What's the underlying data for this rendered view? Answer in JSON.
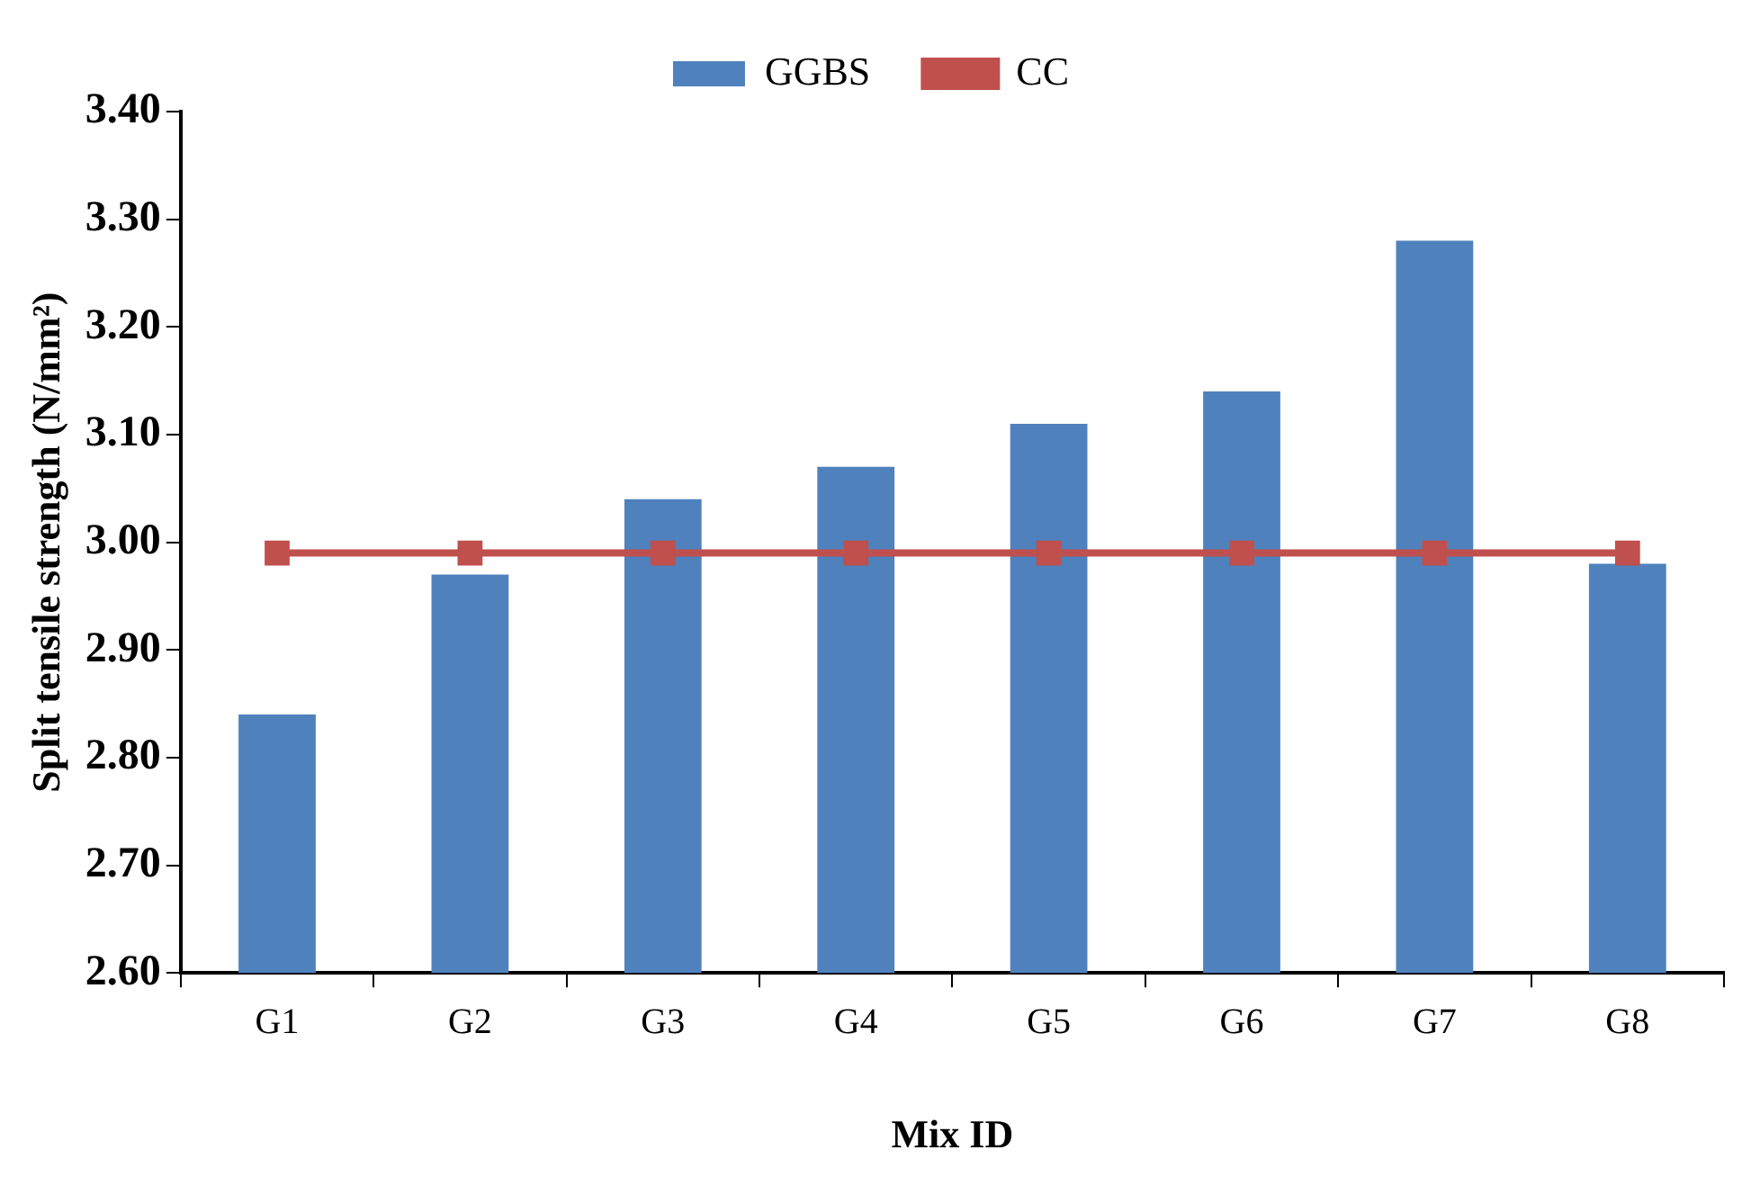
{
  "chart_data": {
    "type": "bar",
    "xlabel": "Mix ID",
    "ylabel": "Split tensile strength (N/mm²)",
    "categories": [
      "G1",
      "G2",
      "G3",
      "G4",
      "G5",
      "G6",
      "G7",
      "G8"
    ],
    "series": [
      {
        "name": "GGBS",
        "color": "#4f81bd",
        "values": [
          2.84,
          2.97,
          3.04,
          3.07,
          3.11,
          3.14,
          3.28,
          2.98
        ]
      },
      {
        "name": "CC",
        "type": "line",
        "color": "#c0504d",
        "marker": "square",
        "values": [
          2.99,
          2.99,
          2.99,
          2.99,
          2.99,
          2.99,
          2.99,
          2.99
        ]
      }
    ],
    "ylim": [
      2.6,
      3.4
    ],
    "yticks": [
      {
        "value": 2.6,
        "label": "2.60"
      },
      {
        "value": 2.7,
        "label": "2.70"
      },
      {
        "value": 2.8,
        "label": "2.80"
      },
      {
        "value": 2.9,
        "label": "2.90"
      },
      {
        "value": 3.0,
        "label": "3.00"
      },
      {
        "value": 3.1,
        "label": "3.10"
      },
      {
        "value": 3.2,
        "label": "3.20"
      },
      {
        "value": 3.3,
        "label": "3.30"
      },
      {
        "value": 3.4,
        "label": "3.40"
      }
    ],
    "grid": false,
    "legend": "top"
  }
}
